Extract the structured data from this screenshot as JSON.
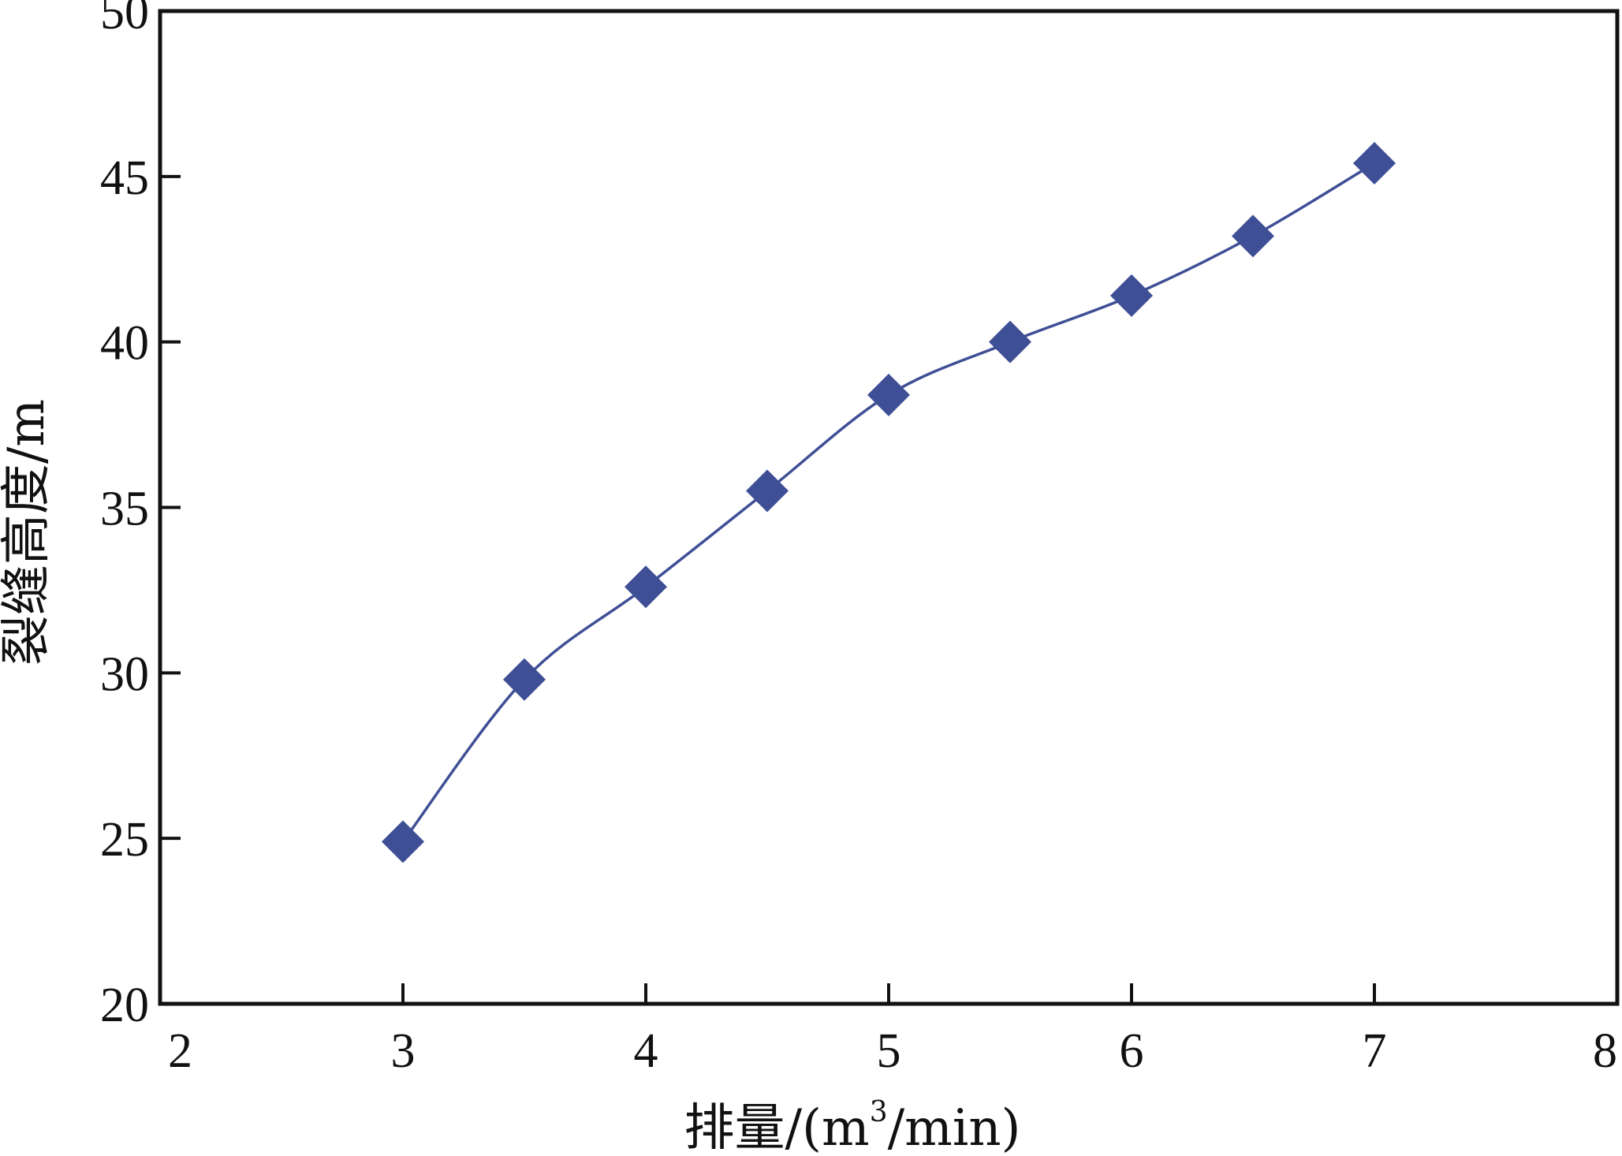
{
  "chart_data": {
    "type": "line",
    "xlabel": "排量/(m³/min)",
    "xlabel_parts": {
      "main": "排量/(m",
      "sup": "3",
      "tail": "/min)"
    },
    "ylabel": "裂缝高度/m",
    "xlim": [
      2,
      8
    ],
    "ylim": [
      20,
      50
    ],
    "xticks": [
      2,
      3,
      4,
      5,
      6,
      7,
      8
    ],
    "yticks": [
      20,
      25,
      30,
      35,
      40,
      45,
      50
    ],
    "grid": false,
    "legend": "none",
    "marker": "diamond",
    "color": "#3f4f96",
    "series": [
      {
        "x": [
          3.0,
          3.5,
          4.0,
          4.5,
          5.0,
          5.5,
          6.0,
          6.5,
          7.0
        ],
        "y": [
          24.9,
          29.8,
          32.6,
          35.5,
          38.4,
          40.0,
          41.4,
          43.2,
          45.4
        ]
      }
    ]
  }
}
